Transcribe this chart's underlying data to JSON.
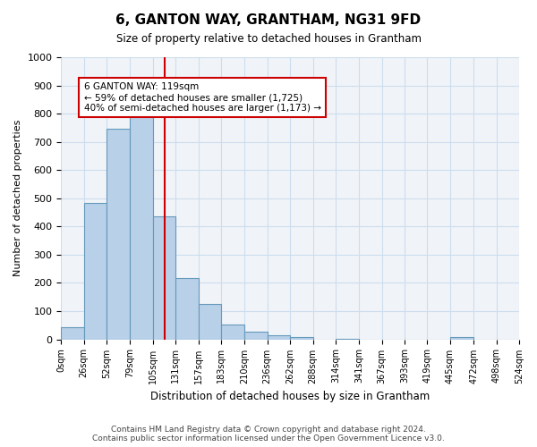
{
  "title": "6, GANTON WAY, GRANTHAM, NG31 9FD",
  "subtitle": "Size of property relative to detached houses in Grantham",
  "xlabel": "Distribution of detached houses by size in Grantham",
  "ylabel": "Number of detached properties",
  "bin_edges": [
    0,
    26,
    52,
    79,
    105,
    131,
    157,
    183,
    210,
    236,
    262,
    288,
    314,
    341,
    367,
    393,
    419,
    445,
    472,
    498,
    524
  ],
  "bar_heights": [
    43,
    483,
    748,
    790,
    435,
    218,
    125,
    52,
    28,
    15,
    8,
    0,
    3,
    0,
    0,
    0,
    0,
    7,
    0,
    0
  ],
  "bar_color": "#b8d0e8",
  "bar_edge_color": "#6699bb",
  "property_line_x": 119,
  "property_line_color": "#cc0000",
  "annotation_box_text": "6 GANTON WAY: 119sqm\n← 59% of detached houses are smaller (1,725)\n40% of semi-detached houses are larger (1,173) →",
  "annotation_box_color": "#cc0000",
  "ylim": [
    0,
    1000
  ],
  "grid_color": "#ccddee",
  "background_color": "#f0f4f8",
  "footer_text": "Contains HM Land Registry data © Crown copyright and database right 2024.\nContains public sector information licensed under the Open Government Licence v3.0.",
  "tick_labels": [
    "0sqm",
    "26sqm",
    "52sqm",
    "79sqm",
    "105sqm",
    "131sqm",
    "157sqm",
    "183sqm",
    "210sqm",
    "236sqm",
    "262sqm",
    "288sqm",
    "314sqm",
    "341sqm",
    "367sqm",
    "393sqm",
    "419sqm",
    "445sqm",
    "472sqm",
    "498sqm",
    "524sqm"
  ]
}
